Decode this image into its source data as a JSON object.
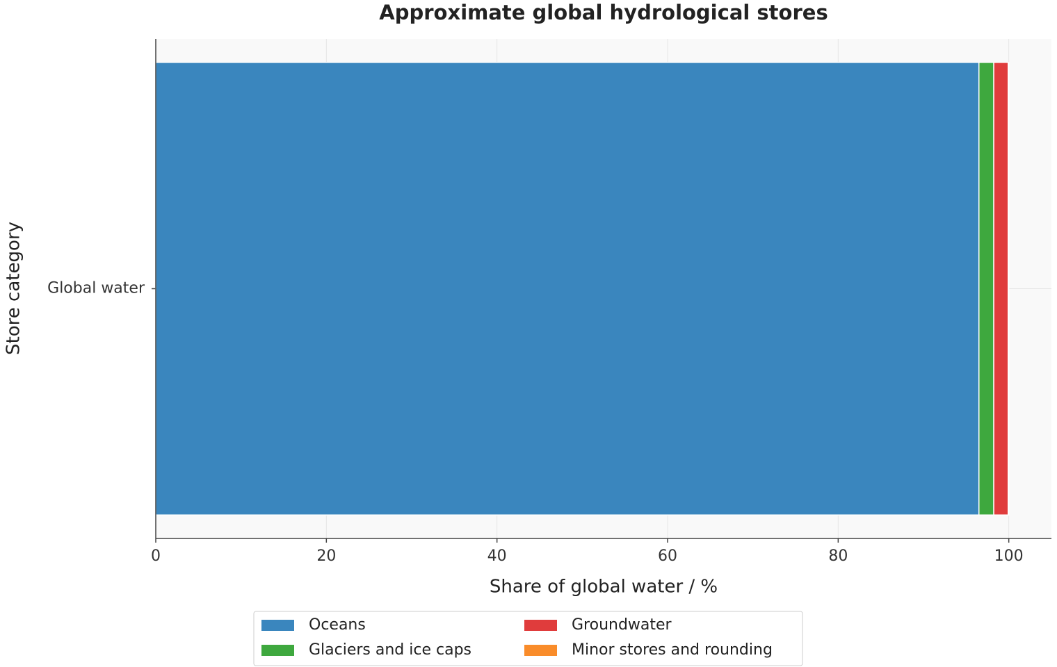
{
  "chart_data": {
    "type": "stacked-barh",
    "title": "Approximate global hydrological stores",
    "xlabel": "Share of global water / %",
    "ylabel": "Store category",
    "categories": [
      "Global water"
    ],
    "series": [
      {
        "name": "Oceans",
        "color": "#3a86be",
        "values": [
          96.5
        ]
      },
      {
        "name": "Glaciers and ice caps",
        "color": "#3ea83e",
        "values": [
          1.74
        ]
      },
      {
        "name": "Groundwater",
        "color": "#e03c3c",
        "values": [
          1.69
        ]
      },
      {
        "name": "Minor stores and rounding",
        "color": "#f98c2a",
        "values": [
          0.07
        ]
      }
    ],
    "xlim": [
      0,
      105
    ],
    "xticks": [
      0,
      20,
      40,
      60,
      80,
      100
    ],
    "grid": true,
    "legend": "lower center"
  }
}
